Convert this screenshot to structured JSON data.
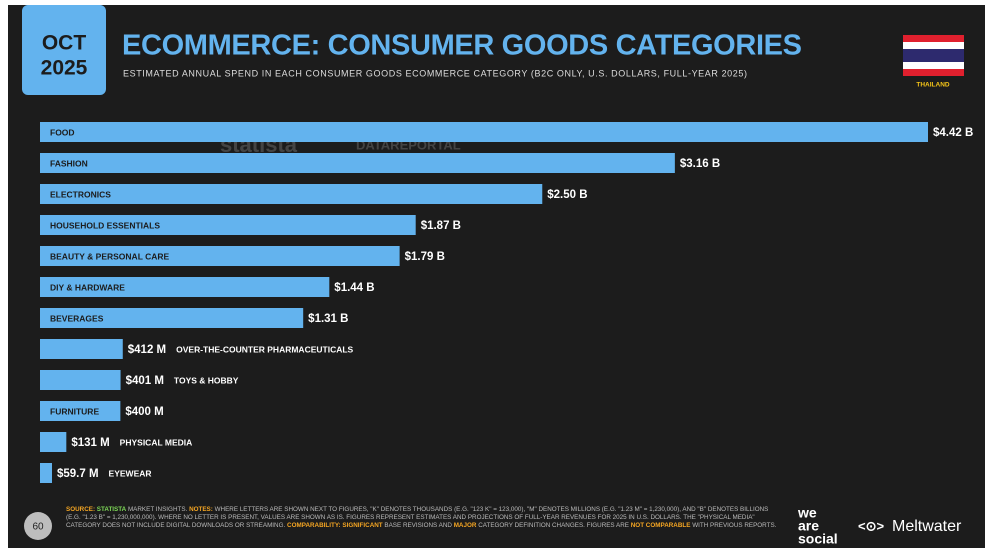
{
  "header": {
    "date_tab": [
      "OCT",
      "2025"
    ],
    "title": "ECOMMERCE: CONSUMER GOODS CATEGORIES",
    "subtitle": "ESTIMATED ANNUAL SPEND IN EACH CONSUMER GOODS ECOMMERCE CATEGORY (B2C ONLY, U.S. DOLLARS, FULL-YEAR 2025)",
    "country": "THAILAND"
  },
  "watermarks": [
    "statista",
    "DATAREPORTAL"
  ],
  "chart_data": {
    "type": "bar",
    "orientation": "horizontal",
    "categories": [
      "FOOD",
      "FASHION",
      "ELECTRONICS",
      "HOUSEHOLD ESSENTIALS",
      "BEAUTY & PERSONAL CARE",
      "DIY & HARDWARE",
      "BEVERAGES",
      "OVER-THE-COUNTER PHARMACEUTICALS",
      "TOYS & HOBBY",
      "FURNITURE",
      "PHYSICAL MEDIA",
      "EYEWEAR"
    ],
    "values": [
      4.42,
      3.16,
      2.5,
      1.87,
      1.79,
      1.44,
      1.31,
      0.412,
      0.401,
      0.4,
      0.131,
      0.0597
    ],
    "value_labels": [
      "$4.42 B",
      "$3.16 B",
      "$2.50 B",
      "$1.87 B",
      "$1.79 B",
      "$1.44 B",
      "$1.31 B",
      "$412 M",
      "$401 M",
      "$400 M",
      "$131 M",
      "$59.7 M"
    ],
    "color": "#63b3ee"
  },
  "footer": {
    "page": "60",
    "notes": [
      {
        "text": "SOURCE:",
        "color": "#f5a623"
      },
      {
        "text": "STATISTA",
        "color": "#7ed957"
      },
      {
        "text": "MARKET INSIGHTS.",
        "color": "#bbbbbb"
      },
      {
        "text": "NOTES:",
        "color": "#f5a623"
      },
      {
        "text": "WHERE LETTERS ARE SHOWN NEXT TO FIGURES, \"K\" DENOTES THOUSANDS (E.G. \"123 K\" = 123,000), \"M\" DENOTES MILLIONS (E.G. \"1.23 M\" = 1,230,000), AND \"B\" DENOTES BILLIONS (E.G. \"1.23 B\" = 1,230,000,000). WHERE NO LETTER IS PRESENT, VALUES ARE SHOWN AS IS. FIGURES REPRESENT ESTIMATES AND PROJECTIONS OF FULL-YEAR REVENUES FOR 2025 IN U.S. DOLLARS. THE \"PHYSICAL MEDIA\" CATEGORY DOES NOT INCLUDE DIGITAL DOWNLOADS OR STREAMING.",
        "color": "#bbbbbb"
      },
      {
        "text": "COMPARABILITY:",
        "color": "#f5a623"
      },
      {
        "text": "SIGNIFICANT",
        "color": "#f5a623"
      },
      {
        "text": "BASE REVISIONS AND",
        "color": "#bbbbbb"
      },
      {
        "text": "MAJOR",
        "color": "#f5a623"
      },
      {
        "text": "CATEGORY DEFINITION CHANGES. FIGURES ARE",
        "color": "#bbbbbb"
      },
      {
        "text": "NOT COMPARABLE",
        "color": "#f5a623"
      },
      {
        "text": "WITH PREVIOUS REPORTS.",
        "color": "#bbbbbb"
      }
    ],
    "brands": {
      "we_are_social": [
        "we",
        "are",
        "social"
      ],
      "meltwater": "Meltwater"
    }
  }
}
